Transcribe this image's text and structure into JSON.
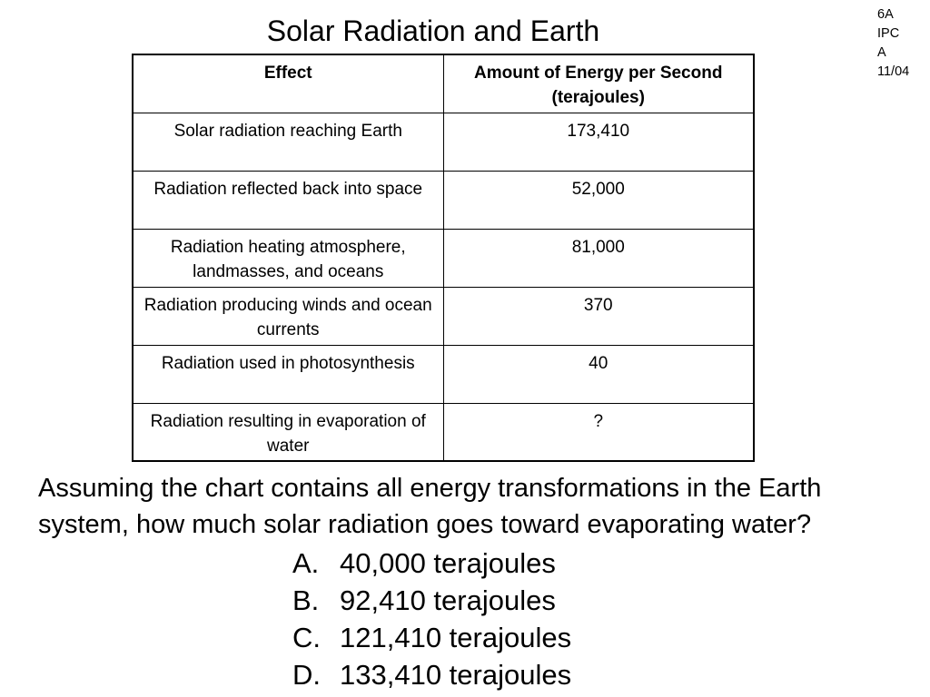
{
  "title": "Solar Radiation and Earth",
  "note": [
    "6A",
    "IPC",
    "A",
    "11/04"
  ],
  "table": {
    "header": [
      "Effect",
      "Amount of Energy per Second (terajoules)"
    ],
    "rows": [
      [
        "Solar radiation reaching Earth",
        "173,410"
      ],
      [
        "Radiation reflected back into space",
        "52,000"
      ],
      [
        "Radiation heating atmosphere, landmasses, and oceans",
        "81,000"
      ],
      [
        "Radiation producing winds and ocean currents",
        "370"
      ],
      [
        "Radiation used in photosynthesis",
        "40"
      ],
      [
        "Radiation resulting in evaporation of water",
        "?"
      ]
    ]
  },
  "question": "Assuming the chart contains all energy transformations in the Earth system, how much solar radiation goes toward evaporating water?",
  "options": [
    {
      "letter": "A.",
      "text": "40,000 terajoules"
    },
    {
      "letter": "B.",
      "text": "92,410 terajoules"
    },
    {
      "letter": "C.",
      "text": "121,410 terajoules"
    },
    {
      "letter": "D.",
      "text": "133,410 terajoules"
    }
  ]
}
